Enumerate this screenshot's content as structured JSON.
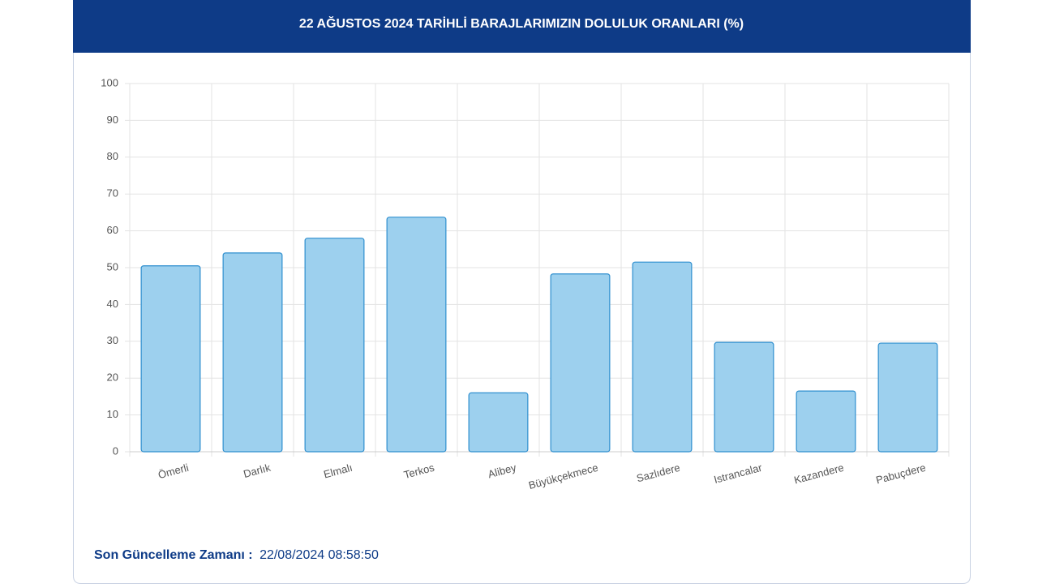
{
  "chart_data": {
    "type": "bar",
    "title": "22 AĞUSTOS 2024 TARİHLİ BARAJLARIMIZIN DOLULUK ORANLARI (%)",
    "categories": [
      "Ömerli",
      "Darlık",
      "Elmalı",
      "Terkos",
      "Alibey",
      "Büyükçekmece",
      "Sazlıdere",
      "Istrancalar",
      "Kazandere",
      "Pabuçdere"
    ],
    "values": [
      50.5,
      54,
      58,
      63.7,
      16,
      48.3,
      51.5,
      29.7,
      16.5,
      29.5
    ],
    "color": "#9dd0ee",
    "edge_color": "#2f8fcf",
    "ylim": [
      0,
      100
    ],
    "yticks": [
      0,
      10,
      20,
      30,
      40,
      50,
      60,
      70,
      80,
      90,
      100
    ],
    "grid": true
  },
  "footer": {
    "label": "Son Güncelleme Zamanı :",
    "time": "22/08/2024 08:58:50"
  }
}
